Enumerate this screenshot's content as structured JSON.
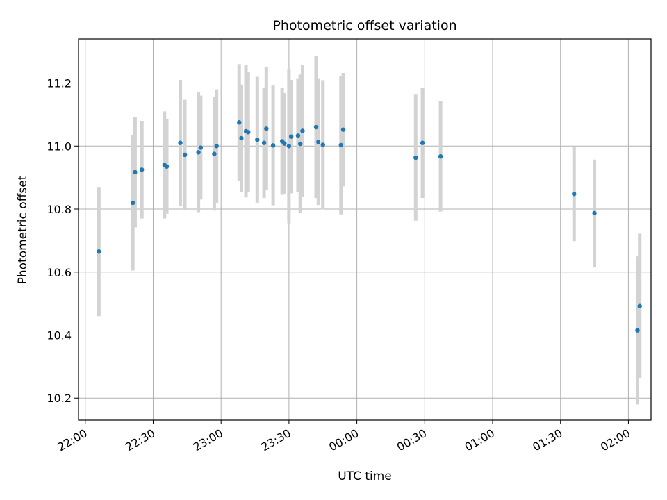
{
  "chart_data": {
    "type": "scatter",
    "title": "Photometric offset variation",
    "xlabel": "UTC time",
    "ylabel": "Photometric offset",
    "x_tick_labels": [
      "22:00",
      "22:30",
      "23:00",
      "23:30",
      "00:00",
      "00:30",
      "01:00",
      "01:30",
      "02:00"
    ],
    "y_tick_labels": [
      "10.2",
      "10.4",
      "10.6",
      "10.8",
      "11.0",
      "11.2"
    ],
    "y_ticks": [
      10.2,
      10.4,
      10.6,
      10.8,
      11.0,
      11.2
    ],
    "x_ticks": [
      "22:00",
      "22:30",
      "23:00",
      "23:30",
      "00:00",
      "00:30",
      "01:00",
      "01:30",
      "02:00"
    ],
    "xlim": [
      "21:57",
      "02:10"
    ],
    "ylim": [
      10.13,
      11.34
    ],
    "grid": true,
    "point_color": "#1f77b4",
    "errorbar_color": "#d3d3d3",
    "points": [
      {
        "x": "22:06",
        "y": 10.665,
        "err": 0.205
      },
      {
        "x": "22:21",
        "y": 10.82,
        "err": 0.215
      },
      {
        "x": "22:22",
        "y": 10.917,
        "err": 0.175
      },
      {
        "x": "22:25",
        "y": 10.925,
        "err": 0.155
      },
      {
        "x": "22:35",
        "y": 10.94,
        "err": 0.17
      },
      {
        "x": "22:36",
        "y": 10.935,
        "err": 0.15
      },
      {
        "x": "22:42",
        "y": 11.01,
        "err": 0.2
      },
      {
        "x": "22:44",
        "y": 10.972,
        "err": 0.175
      },
      {
        "x": "22:50",
        "y": 10.98,
        "err": 0.19
      },
      {
        "x": "22:51",
        "y": 10.995,
        "err": 0.165
      },
      {
        "x": "22:57",
        "y": 10.975,
        "err": 0.18
      },
      {
        "x": "22:58",
        "y": 11.0,
        "err": 0.18
      },
      {
        "x": "23:08",
        "y": 11.075,
        "err": 0.185
      },
      {
        "x": "23:09",
        "y": 11.025,
        "err": 0.17
      },
      {
        "x": "23:11",
        "y": 11.047,
        "err": 0.21
      },
      {
        "x": "23:12",
        "y": 11.044,
        "err": 0.19
      },
      {
        "x": "23:16",
        "y": 11.02,
        "err": 0.2
      },
      {
        "x": "23:19",
        "y": 11.01,
        "err": 0.175
      },
      {
        "x": "23:20",
        "y": 11.055,
        "err": 0.195
      },
      {
        "x": "23:23",
        "y": 11.002,
        "err": 0.19
      },
      {
        "x": "23:27",
        "y": 11.015,
        "err": 0.17
      },
      {
        "x": "23:28",
        "y": 11.008,
        "err": 0.16
      },
      {
        "x": "23:30",
        "y": 11.0,
        "err": 0.245
      },
      {
        "x": "23:31",
        "y": 11.03,
        "err": 0.18
      },
      {
        "x": "23:34",
        "y": 11.033,
        "err": 0.18
      },
      {
        "x": "23:35",
        "y": 11.007,
        "err": 0.22
      },
      {
        "x": "23:36",
        "y": 11.048,
        "err": 0.21
      },
      {
        "x": "23:42",
        "y": 11.06,
        "err": 0.225
      },
      {
        "x": "23:43",
        "y": 11.013,
        "err": 0.2
      },
      {
        "x": "23:45",
        "y": 11.004,
        "err": 0.205
      },
      {
        "x": "23:53",
        "y": 11.003,
        "err": 0.22
      },
      {
        "x": "23:54",
        "y": 11.052,
        "err": 0.18
      },
      {
        "x": "00:26",
        "y": 10.963,
        "err": 0.2
      },
      {
        "x": "00:29",
        "y": 11.01,
        "err": 0.175
      },
      {
        "x": "00:37",
        "y": 10.967,
        "err": 0.175
      },
      {
        "x": "01:36",
        "y": 10.848,
        "err": 0.15
      },
      {
        "x": "01:45",
        "y": 10.787,
        "err": 0.17
      },
      {
        "x": "02:04",
        "y": 10.415,
        "err": 0.235
      },
      {
        "x": "02:05",
        "y": 10.492,
        "err": 0.23
      }
    ]
  }
}
